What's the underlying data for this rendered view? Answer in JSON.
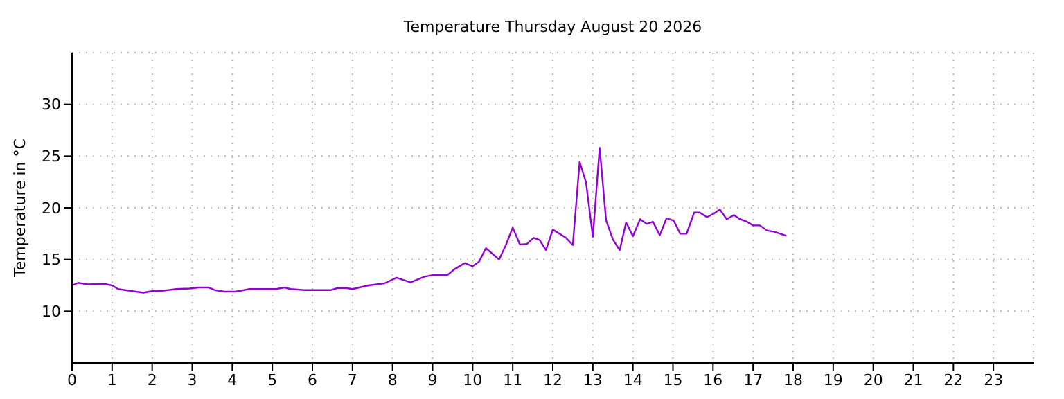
{
  "chart_data": {
    "type": "line",
    "title": "Temperature Thursday August 20 2026",
    "ylabel": "Temperature in °C",
    "x": [
      0,
      0.15,
      0.4,
      0.8,
      1.0,
      1.15,
      1.5,
      1.78,
      2.0,
      2.3,
      2.6,
      2.93,
      3.16,
      3.4,
      3.56,
      3.8,
      4.08,
      4.43,
      4.77,
      5.1,
      5.3,
      5.46,
      5.8,
      6.15,
      6.47,
      6.63,
      6.84,
      7.0,
      7.4,
      7.8,
      8.1,
      8.45,
      8.8,
      9.0,
      9.37,
      9.54,
      9.8,
      10.0,
      10.16,
      10.33,
      10.66,
      10.83,
      11.0,
      11.18,
      11.35,
      11.52,
      11.67,
      11.83,
      12.0,
      12.33,
      12.5,
      12.67,
      12.83,
      13.0,
      13.17,
      13.33,
      13.5,
      13.67,
      13.83,
      14.0,
      14.18,
      14.35,
      14.5,
      14.67,
      14.84,
      15.02,
      15.18,
      15.34,
      15.53,
      15.67,
      15.85,
      16.02,
      16.17,
      16.34,
      16.52,
      16.68,
      16.85,
      17.0,
      17.17,
      17.35,
      17.52,
      17.83
    ],
    "series": [
      {
        "color": "#9400d3",
        "values": [
          12.5,
          12.75,
          12.6,
          12.65,
          12.5,
          12.15,
          11.95,
          11.8,
          11.95,
          12.0,
          12.15,
          12.2,
          12.3,
          12.3,
          12.05,
          11.9,
          11.9,
          12.15,
          12.15,
          12.15,
          12.3,
          12.15,
          12.05,
          12.05,
          12.05,
          12.25,
          12.25,
          12.15,
          12.5,
          12.7,
          13.25,
          12.8,
          13.35,
          13.5,
          13.5,
          14.05,
          14.65,
          14.35,
          14.8,
          16.1,
          15.0,
          16.4,
          18.1,
          16.45,
          16.5,
          17.1,
          16.9,
          15.9,
          17.9,
          17.1,
          16.4,
          24.45,
          22.45,
          17.2,
          25.8,
          18.8,
          16.95,
          15.9,
          18.6,
          17.25,
          18.9,
          18.45,
          18.65,
          17.35,
          19.0,
          18.75,
          17.5,
          17.5,
          19.55,
          19.55,
          19.1,
          19.45,
          19.85,
          18.9,
          19.3,
          18.9,
          18.65,
          18.3,
          18.3,
          17.8,
          17.7,
          17.3
        ]
      }
    ],
    "xlim": [
      0,
      24
    ],
    "xticks": [
      0,
      1,
      2,
      3,
      4,
      5,
      6,
      7,
      8,
      9,
      10,
      11,
      12,
      13,
      14,
      15,
      16,
      17,
      18,
      19,
      20,
      21,
      22,
      23
    ],
    "ylim": [
      5,
      35
    ],
    "yticks": [
      10,
      15,
      20,
      25,
      30
    ],
    "grid": true,
    "line_style": "solid",
    "marker": "none",
    "legend": false
  }
}
